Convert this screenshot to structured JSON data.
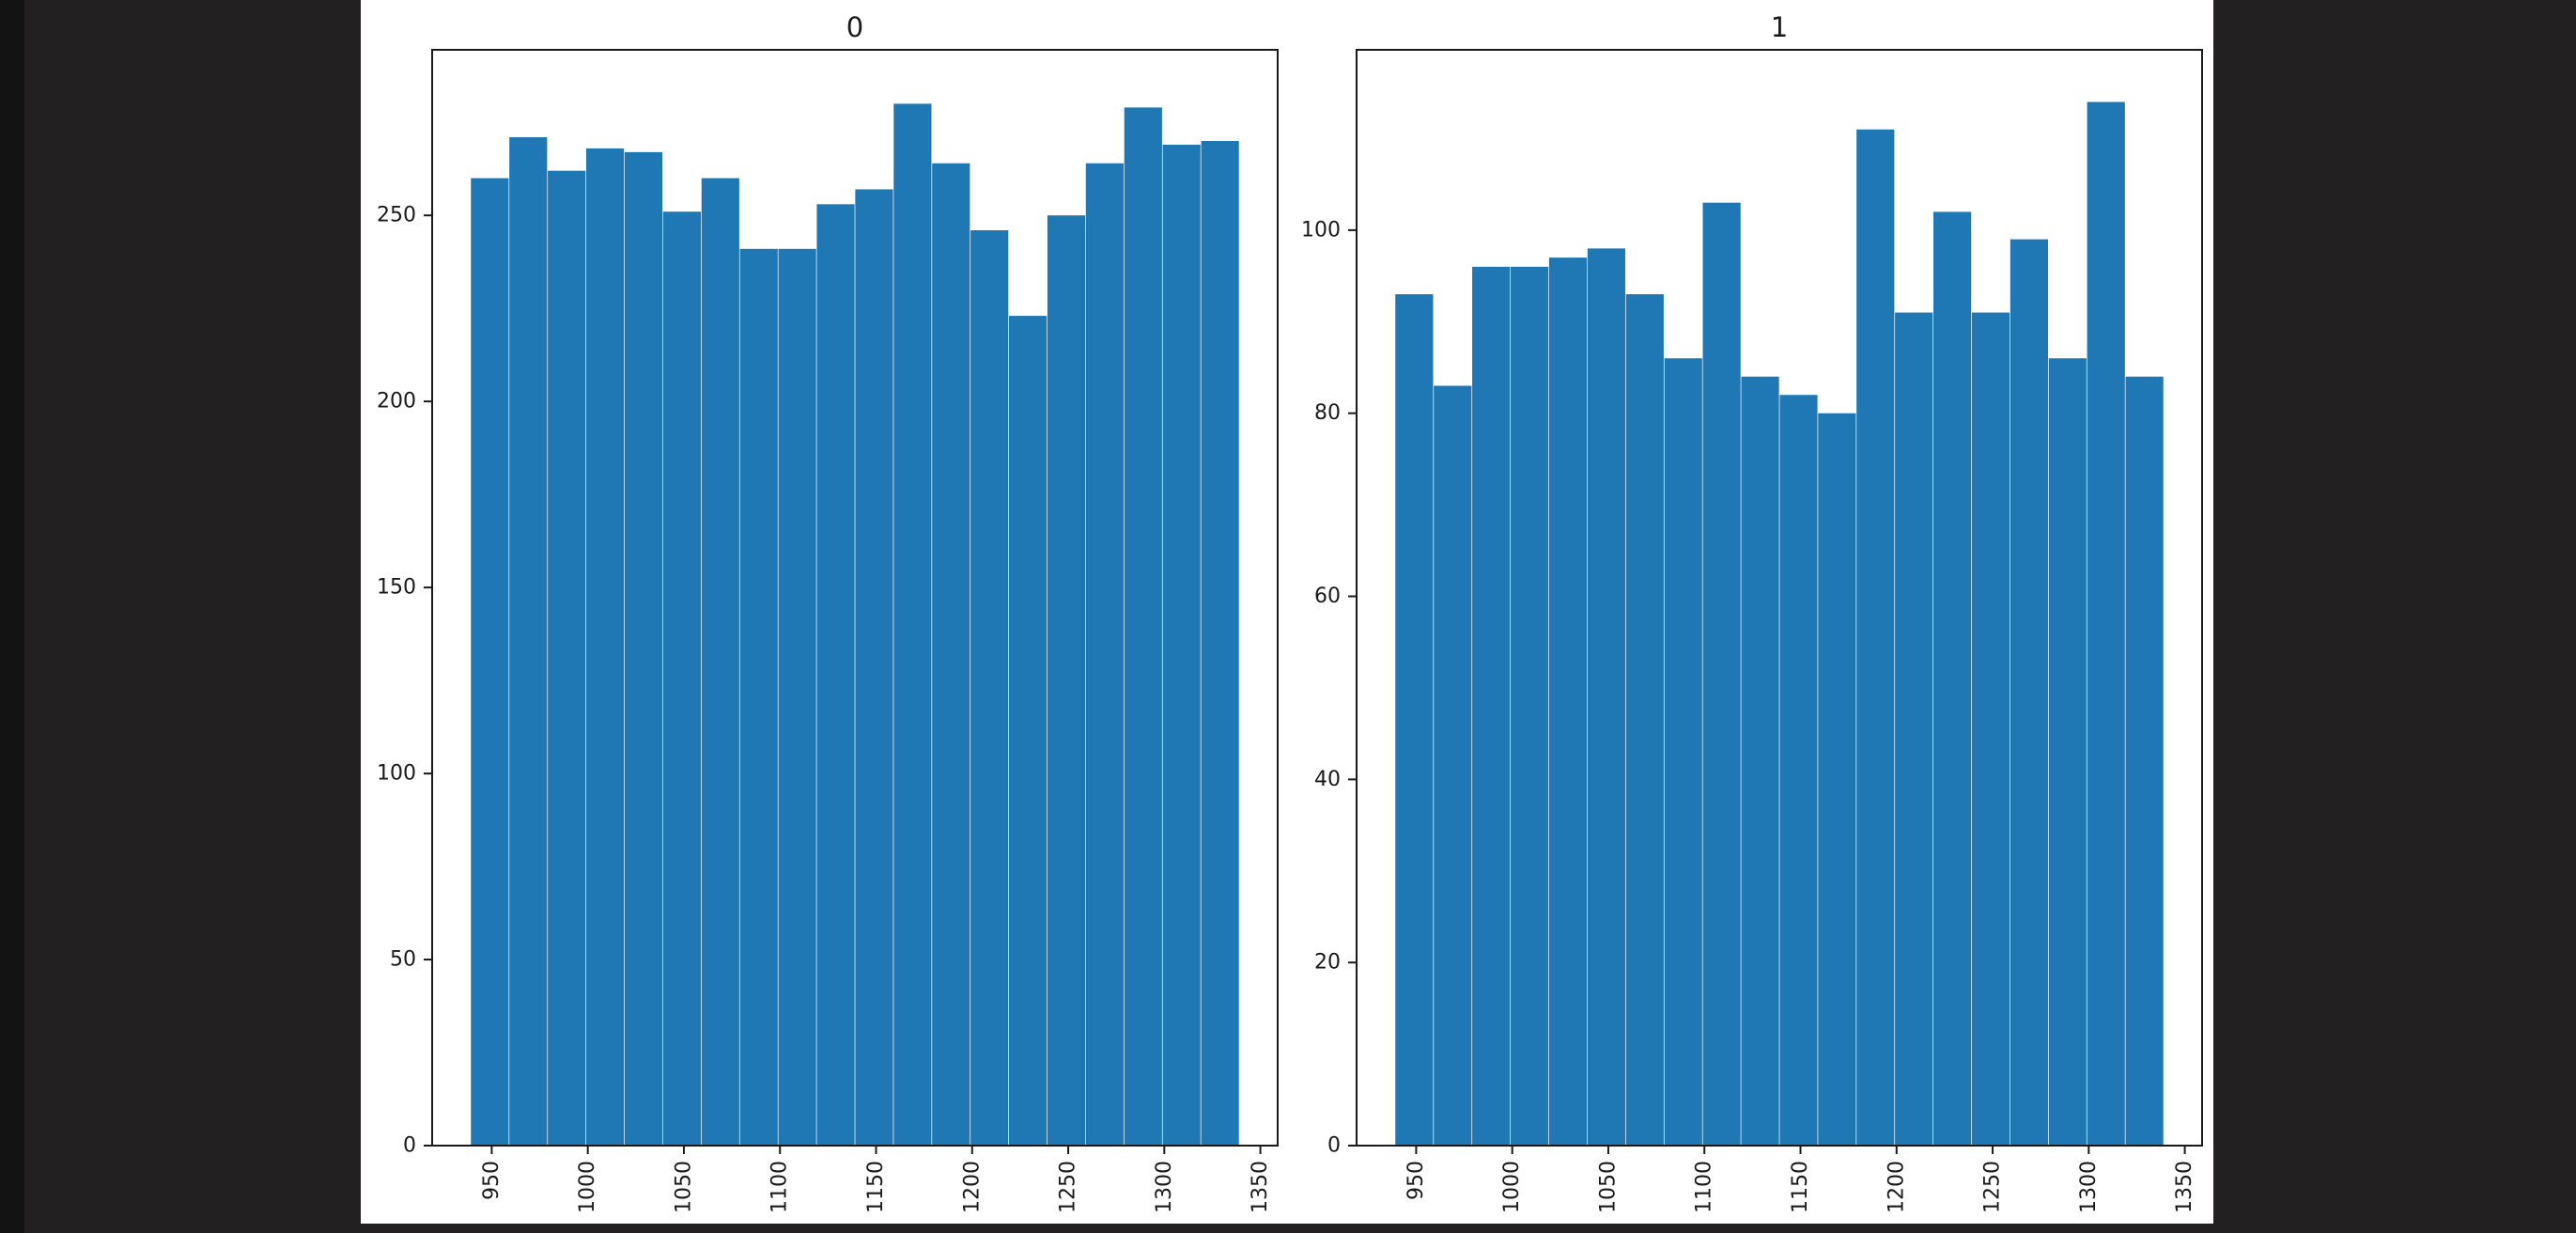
{
  "window": {
    "desktop_background_color": "#222021",
    "figure_background_color": "#ffffff",
    "text_color": "#1a1a1a"
  },
  "chart_data": [
    {
      "type": "bar",
      "subtype": "histogram",
      "title": "0",
      "bar_color": "#1f77b4",
      "bin_start": 939,
      "bin_width": 20,
      "values": [
        260,
        271,
        262,
        268,
        267,
        251,
        260,
        241,
        241,
        253,
        257,
        280,
        264,
        246,
        223,
        250,
        264,
        279,
        269,
        270
      ],
      "x_ticks": [
        950,
        1000,
        1050,
        1100,
        1150,
        1200,
        1250,
        1300,
        1350
      ],
      "y_ticks": [
        0,
        50,
        100,
        150,
        200,
        250
      ],
      "xlim": [
        919,
        1359
      ],
      "ylim": [
        0,
        294.5
      ],
      "x_tick_rotation": 90,
      "grid": false,
      "legend": null
    },
    {
      "type": "bar",
      "subtype": "histogram",
      "title": "1",
      "bar_color": "#1f77b4",
      "bin_start": 939,
      "bin_width": 20,
      "values": [
        93,
        83,
        96,
        96,
        97,
        98,
        93,
        86,
        103,
        84,
        82,
        80,
        111,
        91,
        102,
        91,
        99,
        86,
        114,
        84
      ],
      "x_ticks": [
        950,
        1000,
        1050,
        1100,
        1150,
        1200,
        1250,
        1300,
        1350
      ],
      "y_ticks": [
        0,
        20,
        40,
        60,
        80,
        100
      ],
      "xlim": [
        919,
        1359
      ],
      "ylim": [
        0,
        119.7
      ],
      "x_tick_rotation": 90,
      "grid": false,
      "legend": null
    }
  ]
}
